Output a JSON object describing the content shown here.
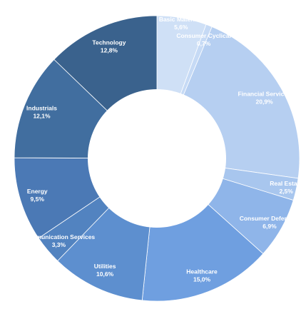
{
  "chart_data": {
    "type": "pie",
    "title": "",
    "variant": "donut",
    "start_angle_deg": 0,
    "direction": "clockwise",
    "slices": [
      {
        "label": "Basic Materials",
        "value_text": "5,6%",
        "value": 5.6,
        "color": "#cfe0f6"
      },
      {
        "label": "Consumer Cyclical",
        "value_text": "0,7%",
        "value": 0.7,
        "color": "#c6daf5"
      },
      {
        "label": "Financial Services",
        "value_text": "20,9%",
        "value": 20.9,
        "color": "#b6cff1"
      },
      {
        "label": "Real Estate",
        "value_text": "2,5%",
        "value": 2.5,
        "color": "#a8c6ee"
      },
      {
        "label": "Consumer Defensive",
        "value_text": "6,9%",
        "value": 6.9,
        "color": "#8fb5e9"
      },
      {
        "label": "Healthcare",
        "value_text": "15,0%",
        "value": 15.0,
        "color": "#6f9fe0"
      },
      {
        "label": "Utilities",
        "value_text": "10,6%",
        "value": 10.6,
        "color": "#5d8fcf"
      },
      {
        "label": "Communication Services",
        "value_text": "3,3%",
        "value": 3.3,
        "color": "#5283c0"
      },
      {
        "label": "Energy",
        "value_text": "9,5%",
        "value": 9.5,
        "color": "#4b79b5"
      },
      {
        "label": "Industrials",
        "value_text": "12,1%",
        "value": 12.1,
        "color": "#416e9f"
      },
      {
        "label": "Technology",
        "value_text": "12,8%",
        "value": 12.8,
        "color": "#3a628d"
      }
    ]
  }
}
